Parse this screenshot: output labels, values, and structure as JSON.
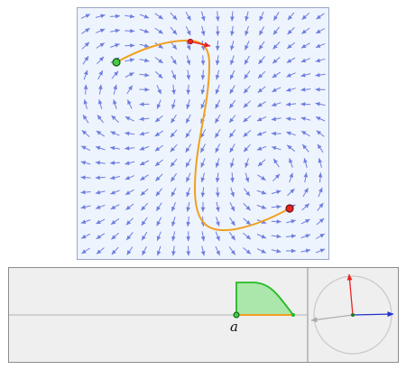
{
  "field": {
    "colors": {
      "arrow": "#6f7ee0",
      "background": "#eef4fd",
      "curve": "#f0a020",
      "start_point": "#44cc44",
      "end_point": "#ee2222",
      "tangent_arrow": "#ee2222"
    }
  },
  "param_plot": {
    "point_label": "a",
    "colors": {
      "fill": "#9fe49f",
      "line": "#22bb22",
      "axis": "#b0b0b0",
      "segment": "#f0a020"
    }
  },
  "compass": {
    "colors": {
      "circle": "#c8c8c8",
      "red_vector": "#ee2222",
      "blue_vector": "#2233cc",
      "gray_vector": "#aaaaaa",
      "center": "#227722"
    }
  }
}
